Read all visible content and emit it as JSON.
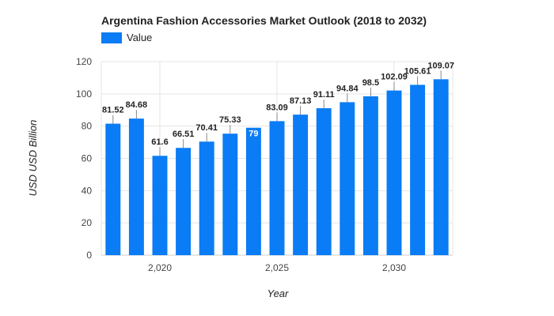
{
  "chart_data": {
    "type": "bar",
    "title": "Argentina Fashion Accessories Market Outlook (2018 to 2032)",
    "xlabel": "Year",
    "ylabel": "USD USD Billion",
    "x": [
      2018,
      2019,
      2020,
      2021,
      2022,
      2023,
      2024,
      2025,
      2026,
      2027,
      2028,
      2029,
      2030,
      2031,
      2032
    ],
    "x_ticks": [
      2020,
      2025,
      2030
    ],
    "x_tick_labels": [
      "2,020",
      "2,025",
      "2,030"
    ],
    "series": [
      {
        "name": "Value",
        "values": [
          81.52,
          84.68,
          61.6,
          66.51,
          70.41,
          75.33,
          79,
          83.09,
          87.13,
          91.11,
          94.84,
          98.5,
          102.09,
          105.61,
          109.07
        ],
        "labels": [
          "81.52",
          "84.68",
          "61.6",
          "66.51",
          "70.41",
          "75.33",
          "79",
          "83.09",
          "87.13",
          "91.11",
          "94.84",
          "98.5",
          "102.09",
          "105.61",
          "109.07"
        ]
      }
    ],
    "ylim": [
      0,
      120
    ],
    "yticks": [
      0,
      20,
      40,
      60,
      80,
      100,
      120
    ],
    "grid": true,
    "legend_position": "top-left",
    "colors": {
      "bar": "#0a7cf5",
      "grid": "#e5e5e5",
      "axis": "#cccccc"
    }
  }
}
